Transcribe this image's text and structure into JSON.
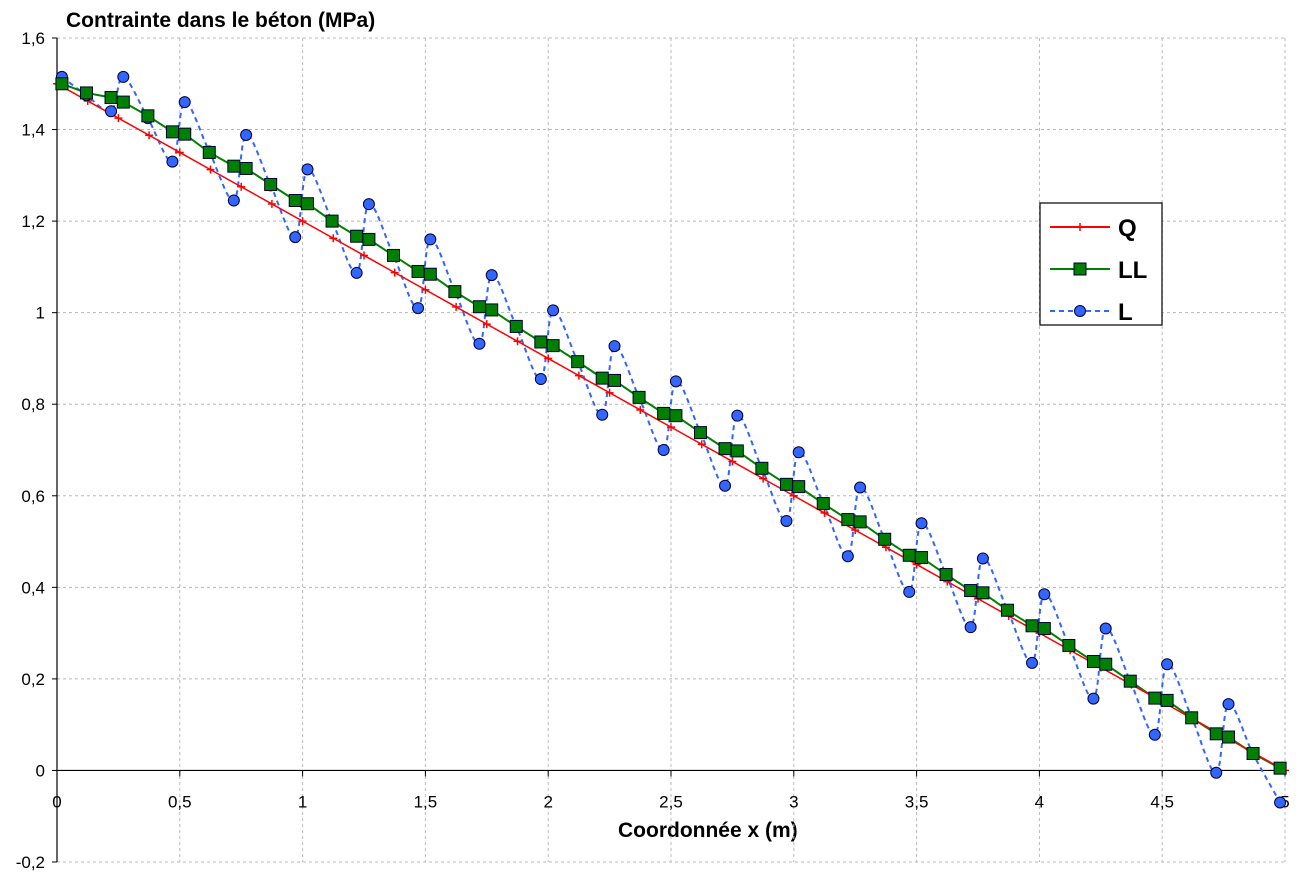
{
  "chart_data": {
    "type": "line",
    "title": "Contrainte dans le béton (MPa)",
    "xlabel": "Coordonnée x (m)",
    "ylabel": "",
    "xlim": [
      0,
      5
    ],
    "ylim": [
      -0.2,
      1.6
    ],
    "grid": true,
    "legend_position": "right",
    "x_ticks": [
      "0",
      "0,5",
      "1",
      "1,5",
      "2",
      "2,5",
      "3",
      "3,5",
      "4",
      "4,5",
      "5"
    ],
    "y_ticks": [
      "-0,2",
      "0",
      "0,2",
      "0,4",
      "0,6",
      "0,8",
      "1",
      "1,2",
      "1,4",
      "1,6"
    ],
    "series": [
      {
        "name": "Q",
        "color": "#ff0000",
        "marker": "plus",
        "x": [
          0,
          0.125,
          0.25,
          0.375,
          0.5,
          0.625,
          0.75,
          0.875,
          1,
          1.125,
          1.25,
          1.375,
          1.5,
          1.625,
          1.75,
          1.875,
          2,
          2.125,
          2.25,
          2.375,
          2.5,
          2.625,
          2.75,
          2.875,
          3,
          3.125,
          3.25,
          3.375,
          3.5,
          3.625,
          3.75,
          3.875,
          4,
          4.125,
          4.25,
          4.375,
          4.5,
          4.625,
          4.75,
          4.875,
          5
        ],
        "y": [
          1.5,
          1.4625,
          1.425,
          1.3875,
          1.35,
          1.3125,
          1.275,
          1.2375,
          1.2,
          1.1625,
          1.125,
          1.0875,
          1.05,
          1.0125,
          0.975,
          0.9375,
          0.9,
          0.8625,
          0.825,
          0.7875,
          0.75,
          0.7125,
          0.675,
          0.6375,
          0.6,
          0.5625,
          0.525,
          0.4875,
          0.45,
          0.4125,
          0.375,
          0.3375,
          0.3,
          0.2625,
          0.225,
          0.1875,
          0.15,
          0.1125,
          0.075,
          0.0375,
          0
        ]
      },
      {
        "name": "LL",
        "color": "#008000",
        "marker": "square",
        "x": [
          0.02,
          0.12,
          0.22,
          0.27,
          0.37,
          0.47,
          0.52,
          0.62,
          0.72,
          0.77,
          0.87,
          0.97,
          1.02,
          1.12,
          1.22,
          1.27,
          1.37,
          1.47,
          1.52,
          1.62,
          1.72,
          1.77,
          1.87,
          1.97,
          2.02,
          2.12,
          2.22,
          2.27,
          2.37,
          2.47,
          2.52,
          2.62,
          2.72,
          2.77,
          2.87,
          2.97,
          3.02,
          3.12,
          3.22,
          3.27,
          3.37,
          3.47,
          3.52,
          3.62,
          3.72,
          3.77,
          3.87,
          3.97,
          4.02,
          4.12,
          4.22,
          4.27,
          4.37,
          4.47,
          4.52,
          4.62,
          4.72,
          4.77,
          4.87,
          4.98
        ],
        "y": [
          1.5,
          1.48,
          1.47,
          1.46,
          1.43,
          1.395,
          1.39,
          1.35,
          1.32,
          1.315,
          1.28,
          1.245,
          1.238,
          1.2,
          1.167,
          1.16,
          1.125,
          1.09,
          1.084,
          1.046,
          1.013,
          1.006,
          0.97,
          0.936,
          0.928,
          0.893,
          0.857,
          0.852,
          0.815,
          0.78,
          0.775,
          0.738,
          0.703,
          0.698,
          0.66,
          0.625,
          0.62,
          0.583,
          0.548,
          0.543,
          0.505,
          0.47,
          0.465,
          0.428,
          0.393,
          0.388,
          0.35,
          0.316,
          0.31,
          0.273,
          0.238,
          0.232,
          0.195,
          0.158,
          0.153,
          0.115,
          0.08,
          0.073,
          0.037,
          0.005
        ]
      },
      {
        "name": "L",
        "color": "#3366ff",
        "marker": "circle",
        "x": [
          0.02,
          0.12,
          0.22,
          0.27,
          0.37,
          0.47,
          0.52,
          0.62,
          0.72,
          0.77,
          0.87,
          0.97,
          1.02,
          1.12,
          1.22,
          1.27,
          1.37,
          1.47,
          1.52,
          1.62,
          1.72,
          1.77,
          1.87,
          1.97,
          2.02,
          2.12,
          2.22,
          2.27,
          2.37,
          2.47,
          2.52,
          2.62,
          2.72,
          2.77,
          2.87,
          2.97,
          3.02,
          3.12,
          3.22,
          3.27,
          3.37,
          3.47,
          3.52,
          3.62,
          3.72,
          3.77,
          3.87,
          3.97,
          4.02,
          4.12,
          4.22,
          4.27,
          4.37,
          4.47,
          4.52,
          4.62,
          4.72,
          4.77,
          4.87,
          4.98
        ],
        "y": [
          1.515,
          1.475,
          1.44,
          1.515,
          1.425,
          1.33,
          1.46,
          1.352,
          1.245,
          1.388,
          1.278,
          1.165,
          1.313,
          1.2,
          1.087,
          1.237,
          1.125,
          1.01,
          1.16,
          1.047,
          0.932,
          1.082,
          0.97,
          0.855,
          1.005,
          0.893,
          0.777,
          0.927,
          0.815,
          0.7,
          0.85,
          0.738,
          0.622,
          0.775,
          0.66,
          0.545,
          0.695,
          0.583,
          0.468,
          0.618,
          0.505,
          0.39,
          0.54,
          0.428,
          0.313,
          0.463,
          0.35,
          0.235,
          0.385,
          0.273,
          0.157,
          0.31,
          0.195,
          0.078,
          0.232,
          0.116,
          -0.005,
          0.145,
          0.036,
          -0.07
        ]
      }
    ]
  }
}
